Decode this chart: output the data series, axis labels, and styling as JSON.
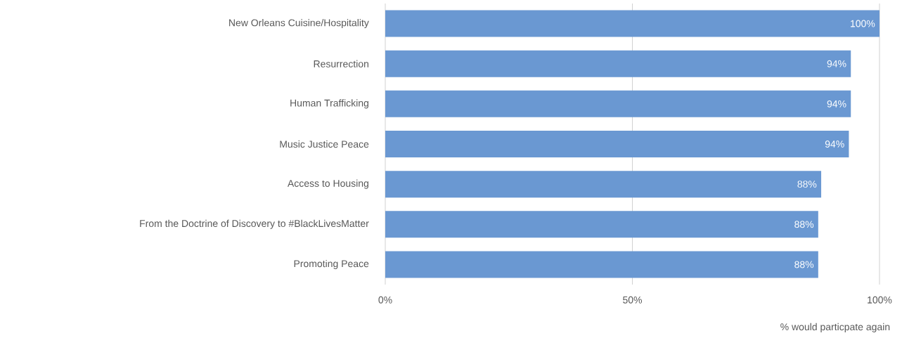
{
  "chart_data": {
    "type": "bar",
    "orientation": "horizontal",
    "categories": [
      "New Orleans Cuisine/Hospitality",
      "Resurrection",
      "Human Trafficking",
      "Music Justice Peace",
      "Access to Housing",
      "From the Doctrine of Discovery to #BlackLivesMatter",
      "Promoting Peace"
    ],
    "values": [
      100,
      94.2,
      94.2,
      93.8,
      88.2,
      87.6,
      87.6
    ],
    "value_labels": [
      "100%",
      "94%",
      "94%",
      "94%",
      "88%",
      "88%",
      "88%"
    ],
    "color": "#6a98d2",
    "xlim": [
      0,
      100
    ],
    "xticks": [
      {
        "value": 0,
        "label": "0%"
      },
      {
        "value": 50,
        "label": "50%"
      },
      {
        "value": 100,
        "label": "100%"
      }
    ],
    "xlabel": "% would particpate again",
    "grid": "x"
  }
}
